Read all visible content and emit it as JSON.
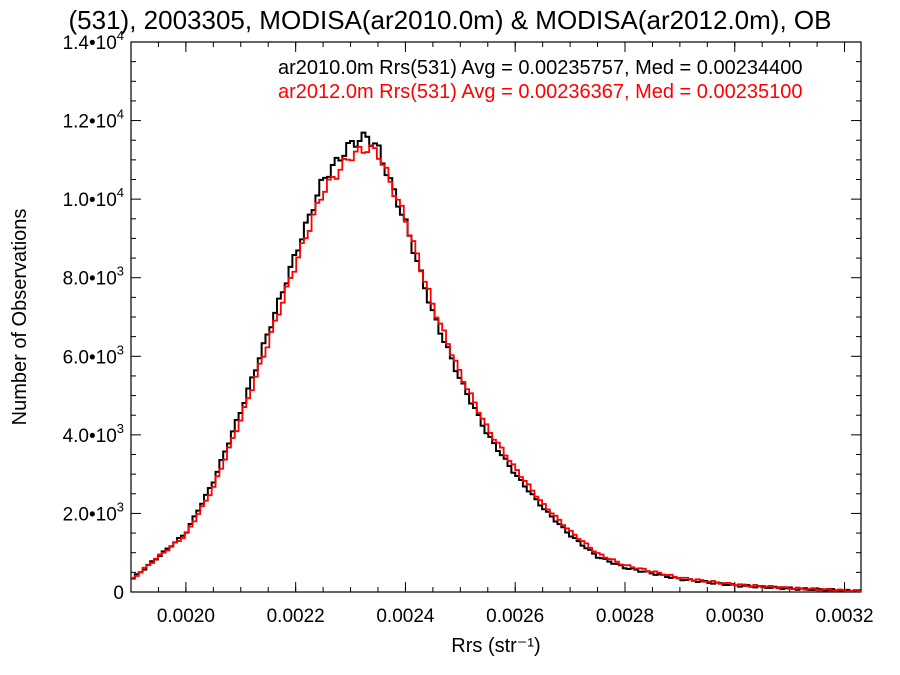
{
  "chart_data": {
    "type": "line",
    "title": "(531), 2003305, MODISA(ar2010.0m) & MODISA(ar2012.0m), OB",
    "xlabel": "Rrs (str⁻¹)",
    "ylabel": "Number of Observations",
    "xlim": [
      0.0019,
      0.00323
    ],
    "ylim": [
      0,
      14000
    ],
    "x_ticks": [
      {
        "value": 0.002,
        "label": "0.0020"
      },
      {
        "value": 0.0022,
        "label": "0.0022"
      },
      {
        "value": 0.0024,
        "label": "0.0024"
      },
      {
        "value": 0.0026,
        "label": "0.0026"
      },
      {
        "value": 0.0028,
        "label": "0.0028"
      },
      {
        "value": 0.003,
        "label": "0.0030"
      },
      {
        "value": 0.0032,
        "label": "0.0032"
      }
    ],
    "y_ticks": [
      {
        "value": 0,
        "mantissa": "0",
        "exponent": ""
      },
      {
        "value": 2000,
        "mantissa": "2.0•10",
        "exponent": "3"
      },
      {
        "value": 4000,
        "mantissa": "4.0•10",
        "exponent": "3"
      },
      {
        "value": 6000,
        "mantissa": "6.0•10",
        "exponent": "3"
      },
      {
        "value": 8000,
        "mantissa": "8.0•10",
        "exponent": "3"
      },
      {
        "value": 10000,
        "mantissa": "1.0•10",
        "exponent": "4"
      },
      {
        "value": 12000,
        "mantissa": "1.2•10",
        "exponent": "4"
      },
      {
        "value": 14000,
        "mantissa": "1.4•10",
        "exponent": "4"
      }
    ],
    "grid": false,
    "legend_position": "top-right",
    "series": [
      {
        "name": "ar2010.0m Rrs(531) Avg = 0.00235757, Med = 0.00234400",
        "color": "#000000",
        "x": [
          0.0019,
          0.00195,
          0.002,
          0.00205,
          0.0021,
          0.00215,
          0.0022,
          0.00225,
          0.0023,
          0.00233,
          0.00235,
          0.0024,
          0.00245,
          0.0025,
          0.00255,
          0.0026,
          0.00265,
          0.0027,
          0.00275,
          0.0028,
          0.0029,
          0.003,
          0.0031,
          0.00323
        ],
        "values": [
          300,
          900,
          1500,
          2800,
          4600,
          6600,
          8600,
          10500,
          11400,
          11600,
          11300,
          9400,
          7100,
          5400,
          4000,
          3000,
          2150,
          1450,
          900,
          620,
          330,
          170,
          90,
          20
        ]
      },
      {
        "name": "ar2012.0m Rrs(531) Avg = 0.00236367, Med = 0.00235100",
        "color": "#ff0000",
        "x": [
          0.0019,
          0.00195,
          0.002,
          0.00205,
          0.0021,
          0.00215,
          0.0022,
          0.00225,
          0.0023,
          0.00233,
          0.00235,
          0.0024,
          0.00245,
          0.0025,
          0.00255,
          0.0026,
          0.00265,
          0.0027,
          0.00275,
          0.0028,
          0.0029,
          0.003,
          0.0031,
          0.00323
        ],
        "values": [
          300,
          900,
          1450,
          2650,
          4400,
          6350,
          8350,
          10200,
          11100,
          11300,
          11200,
          9500,
          7300,
          5550,
          4150,
          3150,
          2250,
          1550,
          980,
          680,
          360,
          190,
          100,
          20
        ]
      }
    ]
  }
}
